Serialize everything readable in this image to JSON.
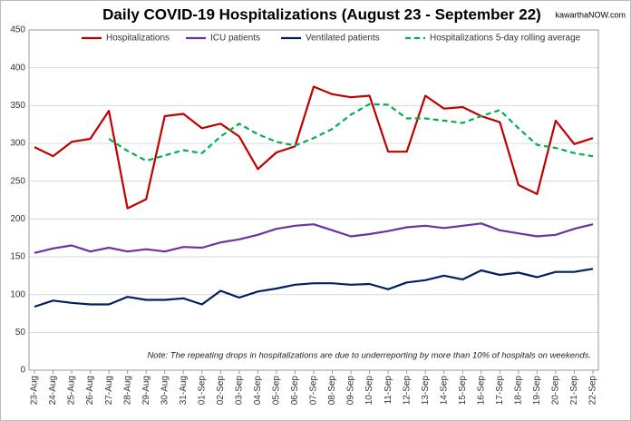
{
  "chart_data": {
    "type": "line",
    "title": "Daily COVID-19 Hospitalizations (August 23 - September 22)",
    "source": "kawarthaNOW.com",
    "note": "Note: The repeating drops in hospitalizations are due to underreporting by more than 10% of hospitals on weekends.",
    "categories": [
      "23-Aug",
      "24-Aug",
      "25-Aug",
      "26-Aug",
      "27-Aug",
      "28-Aug",
      "29-Aug",
      "30-Aug",
      "31-Aug",
      "01-Sep",
      "02-Sep",
      "03-Sep",
      "04-Sep",
      "05-Sep",
      "06-Sep",
      "07-Sep",
      "08-Sep",
      "09-Sep",
      "10-Sep",
      "11-Sep",
      "12-Sep",
      "13-Sep",
      "14-Sep",
      "15-Sep",
      "16-Sep",
      "17-Sep",
      "18-Sep",
      "19-Sep",
      "20-Sep",
      "21-Sep",
      "22-Sep"
    ],
    "series": [
      {
        "name": "Hospitalizations",
        "color": "#c00000",
        "dashed": false,
        "values": [
          295,
          283,
          302,
          306,
          343,
          214,
          226,
          336,
          339,
          320,
          326,
          309,
          266,
          288,
          296,
          375,
          365,
          361,
          363,
          289,
          289,
          363,
          346,
          348,
          336,
          328,
          245,
          233,
          330,
          299,
          307
        ]
      },
      {
        "name": "ICU patients",
        "color": "#7030a0",
        "dashed": false,
        "values": [
          155,
          161,
          165,
          157,
          162,
          157,
          160,
          157,
          163,
          162,
          169,
          173,
          179,
          187,
          191,
          193,
          185,
          177,
          180,
          184,
          189,
          191,
          188,
          191,
          194,
          185,
          181,
          177,
          179,
          187,
          193
        ]
      },
      {
        "name": "Ventilated patients",
        "color": "#002060",
        "dashed": false,
        "values": [
          84,
          92,
          89,
          87,
          87,
          97,
          93,
          93,
          95,
          87,
          105,
          96,
          104,
          108,
          113,
          115,
          115,
          113,
          114,
          107,
          116,
          119,
          125,
          120,
          132,
          126,
          129,
          123,
          130,
          130,
          134
        ]
      },
      {
        "name": "Hospitalizations 5-day rolling average",
        "color": "#00b050",
        "dashed": true,
        "values": [
          null,
          null,
          null,
          null,
          306,
          290,
          277,
          284,
          291,
          287,
          309,
          326,
          312,
          302,
          297,
          307,
          319,
          338,
          352,
          351,
          333,
          333,
          330,
          327,
          336,
          344,
          320,
          298,
          294,
          287,
          283
        ]
      }
    ],
    "ylim": [
      0,
      450
    ],
    "yticks": [
      0,
      50,
      100,
      150,
      200,
      250,
      300,
      350,
      400,
      450
    ],
    "grid": true
  }
}
